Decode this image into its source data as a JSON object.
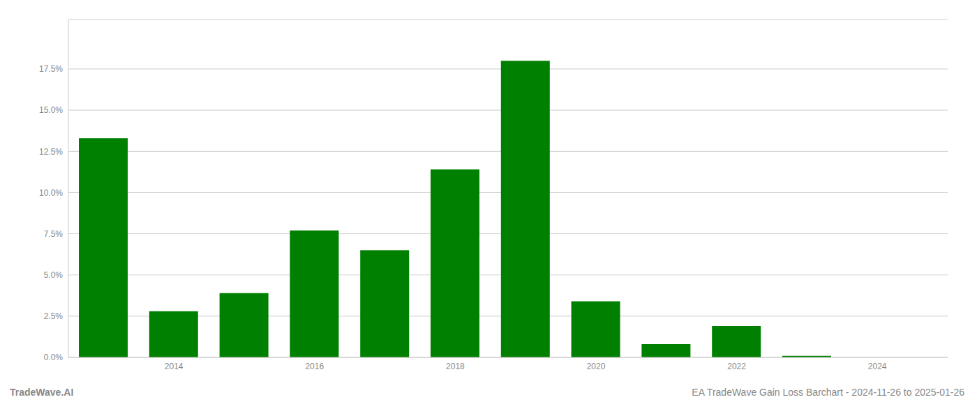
{
  "chart_data": {
    "type": "bar",
    "x": [
      2013,
      2014,
      2015,
      2016,
      2017,
      2018,
      2019,
      2020,
      2021,
      2022,
      2023
    ],
    "values": [
      0.133,
      0.028,
      0.039,
      0.077,
      0.065,
      0.114,
      0.18,
      0.034,
      0.008,
      0.019,
      0.001
    ],
    "color": "#008000",
    "xlim": [
      2012.5,
      2025.0
    ],
    "xticks": [
      2014,
      2016,
      2018,
      2020,
      2022,
      2024
    ],
    "ylim": [
      0,
      0.205
    ],
    "yticks": [
      {
        "value": 0.0,
        "label": "0.0%"
      },
      {
        "value": 0.025,
        "label": "2.5%"
      },
      {
        "value": 0.05,
        "label": "5.0%"
      },
      {
        "value": 0.075,
        "label": "7.5%"
      },
      {
        "value": 0.1,
        "label": "10.0%"
      },
      {
        "value": 0.125,
        "label": "12.5%"
      },
      {
        "value": 0.15,
        "label": "15.0%"
      },
      {
        "value": 0.175,
        "label": "17.5%"
      }
    ],
    "grid": true,
    "annotations": [
      "TradeWave.AI",
      "EA TradeWave Gain Loss Barchart - 2024-11-26 to 2025-01-26"
    ]
  }
}
